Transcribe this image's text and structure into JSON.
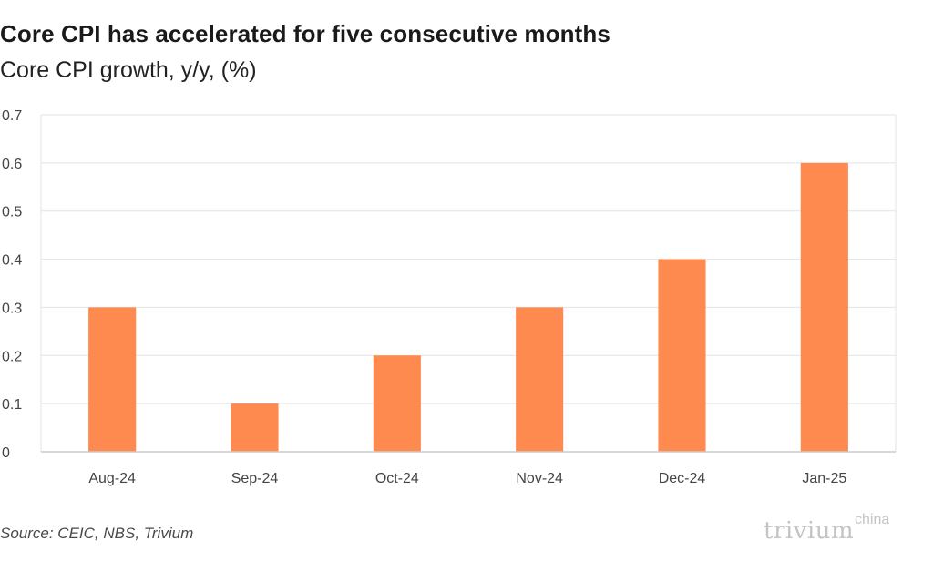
{
  "header": {
    "title": "Core CPI has accelerated for five consecutive months",
    "subtitle": "Core CPI growth, y/y, (%)"
  },
  "footer": {
    "source": "Source: CEIC, NBS, Trivium",
    "logo_main": "trivium",
    "logo_sup": "china"
  },
  "colors": {
    "bar": "#ff8a50",
    "grid": "#e3e3e3",
    "axis": "#cccccc"
  },
  "chart_data": {
    "type": "bar",
    "title": "Core CPI has accelerated for five consecutive months",
    "subtitle": "Core CPI growth, y/y, (%)",
    "xlabel": "",
    "ylabel": "",
    "categories": [
      "Aug-24",
      "Sep-24",
      "Oct-24",
      "Nov-24",
      "Dec-24",
      "Jan-25"
    ],
    "values": [
      0.3,
      0.1,
      0.2,
      0.3,
      0.4,
      0.6
    ],
    "ylim": [
      0,
      0.7
    ],
    "yticks": [
      "0",
      "0.1",
      "0.2",
      "0.3",
      "0.4",
      "0.5",
      "0.6",
      "0.7"
    ],
    "grid": true,
    "legend": "none"
  }
}
